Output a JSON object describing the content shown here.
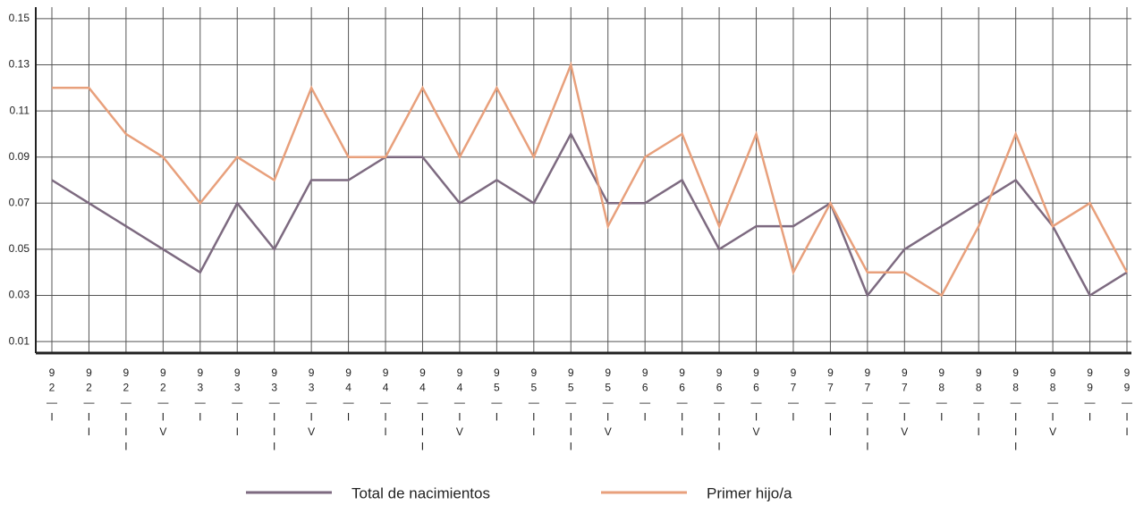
{
  "chart_data": {
    "type": "line",
    "categories": [
      "92—I",
      "92—II",
      "92—III",
      "92—IV",
      "93—I",
      "93—II",
      "93—III",
      "93—IV",
      "94—I",
      "94—II",
      "94—III",
      "94—IV",
      "95—I",
      "95—II",
      "95—III",
      "95—IV",
      "96—I",
      "96—II",
      "96—III",
      "96—IV",
      "97—I",
      "97—II",
      "97—III",
      "97—IV",
      "98—I",
      "98—II",
      "98—III",
      "98—IV",
      "99—I",
      "99—II"
    ],
    "series": [
      {
        "name": "Total de nacimientos",
        "color": "#7d6a80",
        "values": [
          0.08,
          0.07,
          0.06,
          0.05,
          0.04,
          0.07,
          0.05,
          0.08,
          0.08,
          0.09,
          0.09,
          0.07,
          0.08,
          0.07,
          0.1,
          0.07,
          0.07,
          0.08,
          0.05,
          0.06,
          0.06,
          0.07,
          0.03,
          0.05,
          0.06,
          0.07,
          0.08,
          0.06,
          0.03,
          0.04
        ]
      },
      {
        "name": "Primer hijo/a",
        "color": "#e8a07c",
        "values": [
          0.12,
          0.12,
          0.1,
          0.09,
          0.07,
          0.09,
          0.08,
          0.12,
          0.09,
          0.09,
          0.12,
          0.09,
          0.12,
          0.09,
          0.13,
          0.06,
          0.09,
          0.1,
          0.06,
          0.1,
          0.04,
          0.07,
          0.04,
          0.04,
          0.03,
          0.06,
          0.1,
          0.06,
          0.07,
          0.04
        ]
      }
    ],
    "ylim": [
      0.005,
      0.155
    ],
    "yticks": [
      0.01,
      0.03,
      0.05,
      0.07,
      0.09,
      0.11,
      0.13,
      0.15
    ],
    "grid": true,
    "legend": "bottom"
  }
}
